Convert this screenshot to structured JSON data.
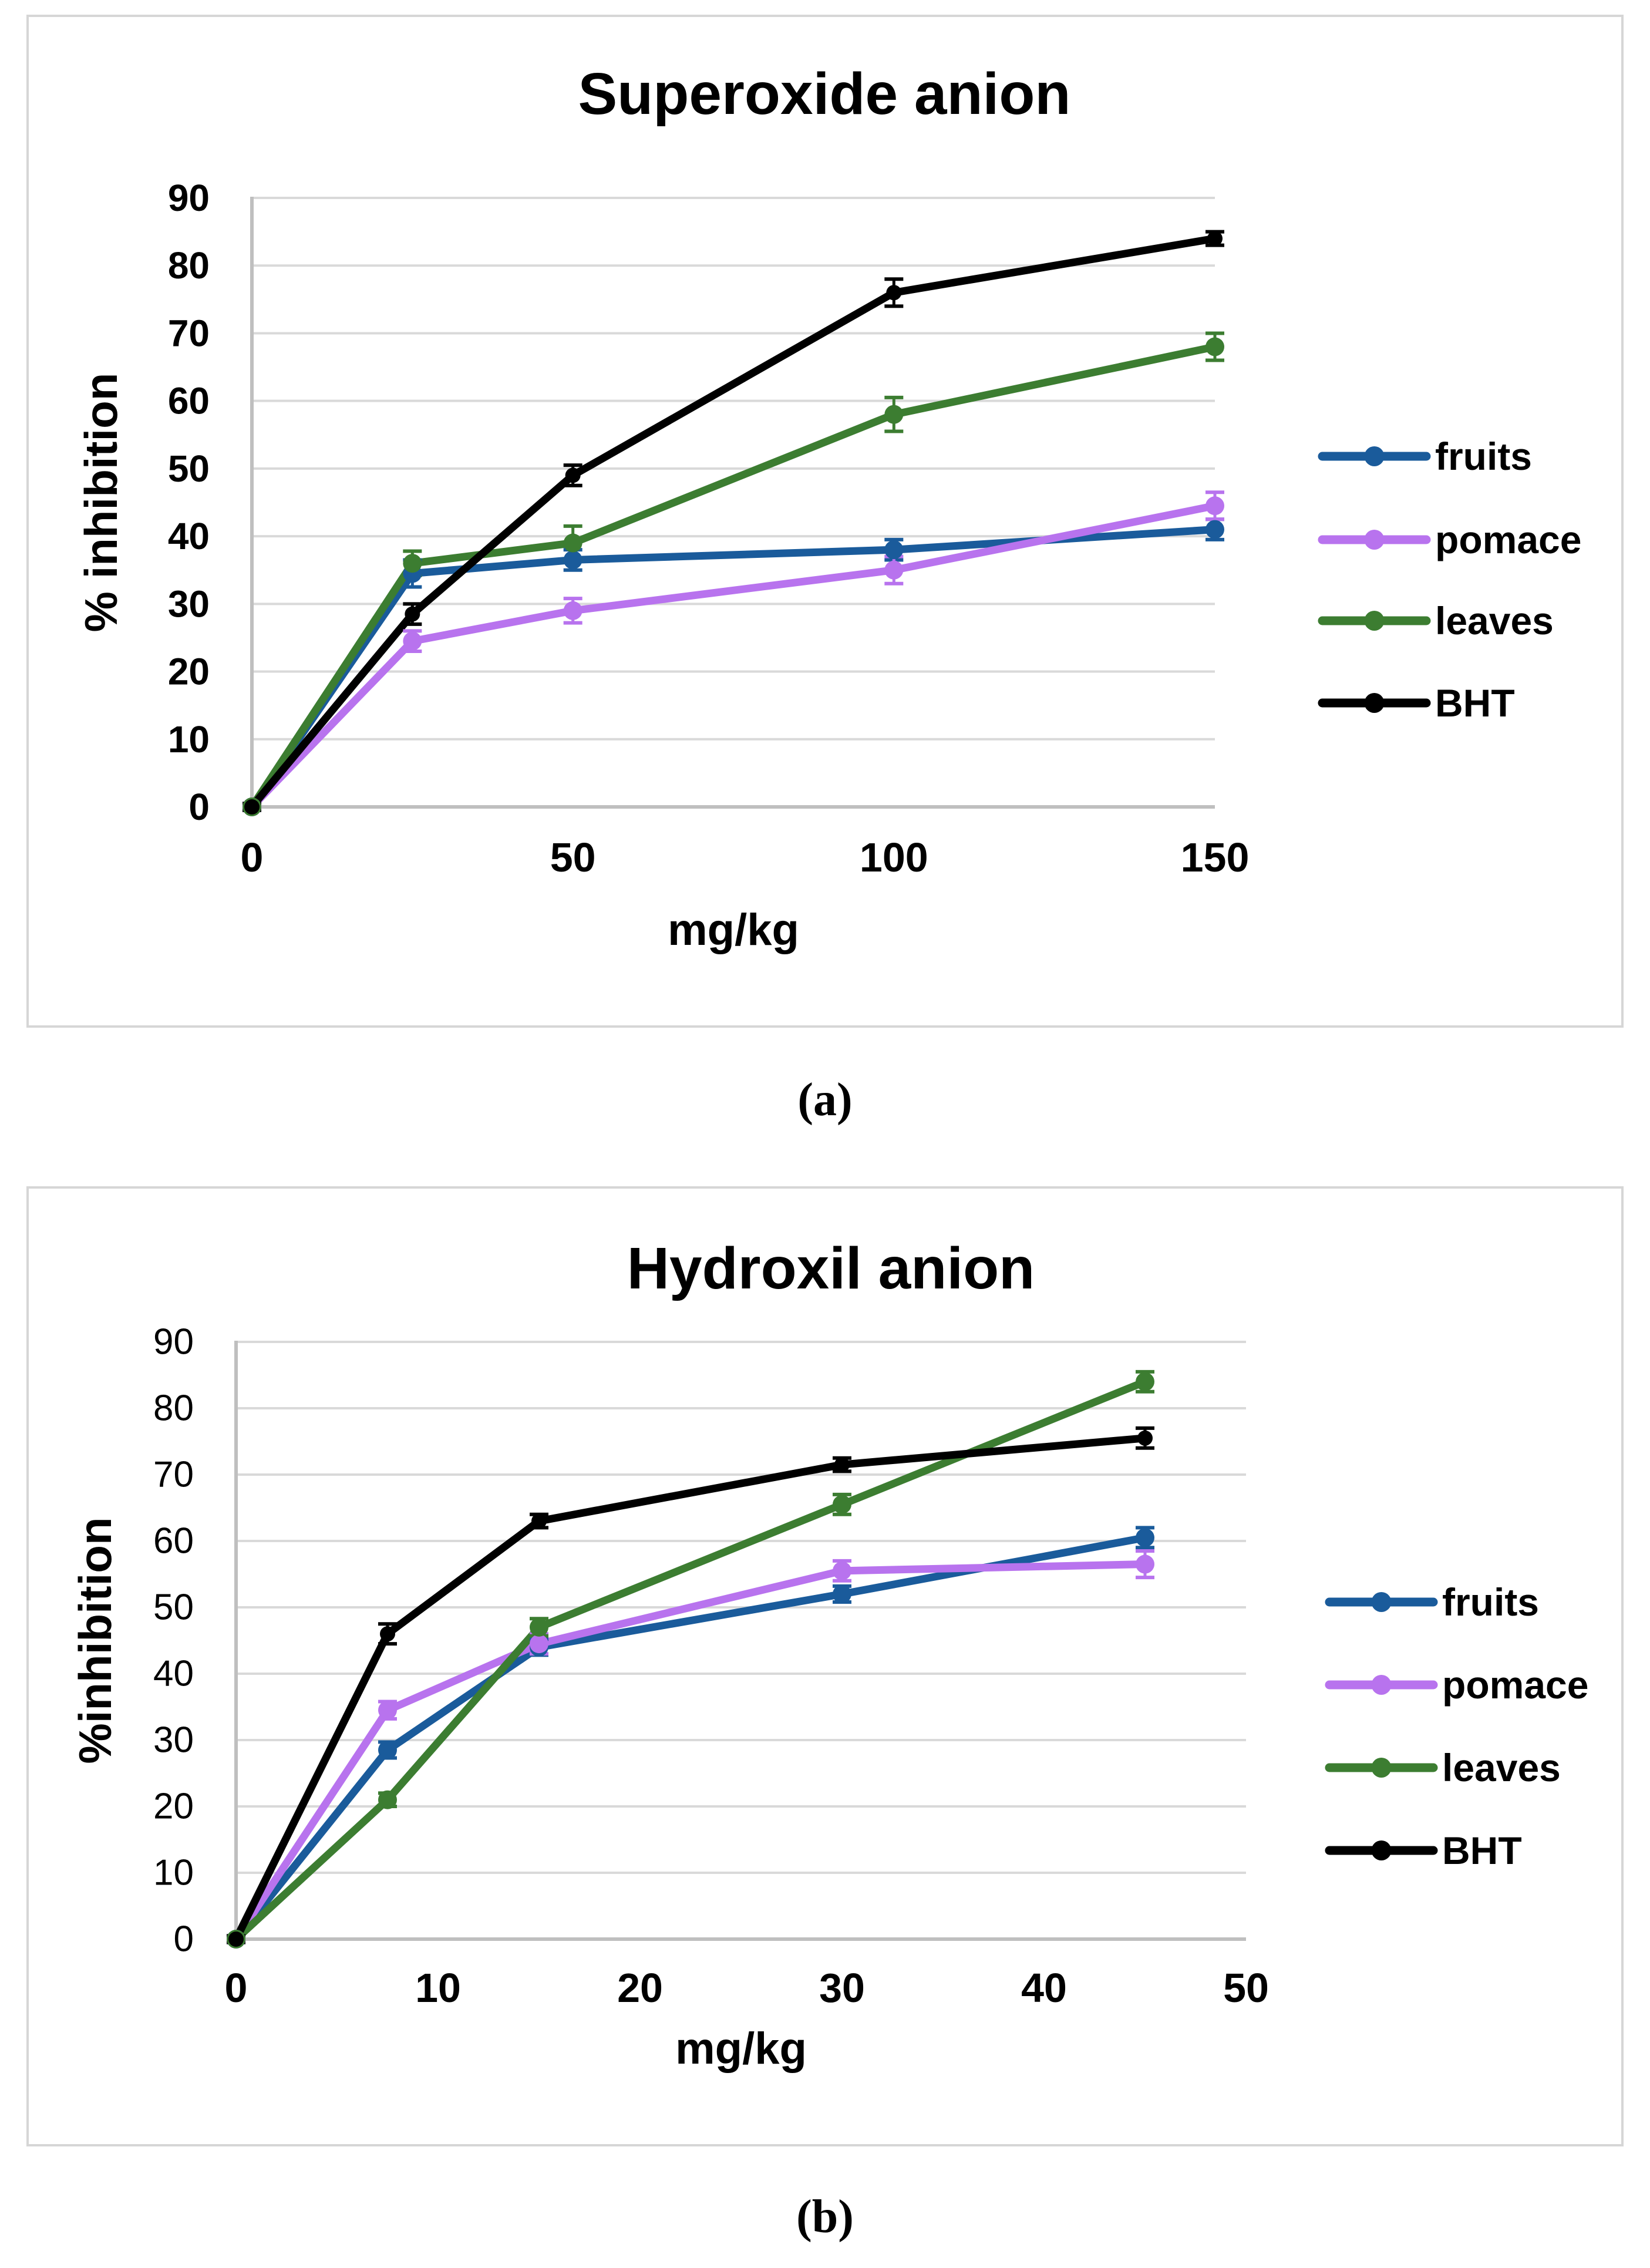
{
  "captions": {
    "a": "(a)",
    "b": "(b)"
  },
  "styles": {
    "background": "#ffffff",
    "gridline_color": "#d9d9d9",
    "axis_color": "#bfbfbf",
    "panel_border_color": "#d6d6d6",
    "text_color": "#000000",
    "fruits_color": "#1a5b9b",
    "pomace_color": "#b873ee",
    "leaves_color": "#3c7d31",
    "bht_color": "#000000"
  },
  "chart_data": [
    {
      "type": "line",
      "id": "a",
      "title": "Superoxide anion",
      "xlabel": "mg/kg",
      "ylabel": "% inhibition",
      "xlim": [
        0,
        150
      ],
      "ylim": [
        0,
        90
      ],
      "x_ticks": [
        0,
        50,
        100,
        150
      ],
      "y_ticks": [
        0,
        10,
        20,
        30,
        40,
        50,
        60,
        70,
        80,
        90
      ],
      "grid": "horizontal",
      "legend_position": "right",
      "tick_weight": {
        "x": "bold",
        "y": "bold"
      },
      "x": [
        0,
        25,
        50,
        100,
        150
      ],
      "series": [
        {
          "name": "fruits",
          "color": "#1a5b9b",
          "values": [
            0,
            34.5,
            36.5,
            38,
            41
          ],
          "errors": [
            0.5,
            2,
            1.5,
            1.5,
            1.5
          ]
        },
        {
          "name": "pomace",
          "color": "#b873ee",
          "values": [
            0,
            24.5,
            29,
            35,
            44.5
          ],
          "errors": [
            0.5,
            1.5,
            1.8,
            2,
            2
          ]
        },
        {
          "name": "leaves",
          "color": "#3c7d31",
          "values": [
            0,
            36,
            39,
            58,
            68
          ],
          "errors": [
            0.5,
            1.8,
            2.5,
            2.5,
            2
          ]
        },
        {
          "name": "BHT",
          "color": "#000000",
          "values": [
            0,
            28.5,
            49,
            76,
            84
          ],
          "errors": [
            0.5,
            1.5,
            1.5,
            2,
            1
          ]
        }
      ]
    },
    {
      "type": "line",
      "id": "b",
      "title": "Hydroxil anion",
      "xlabel": "mg/kg",
      "ylabel": "%inhibition",
      "xlim": [
        0,
        50
      ],
      "ylim": [
        0,
        90
      ],
      "x_ticks": [
        0,
        10,
        20,
        30,
        40,
        50
      ],
      "y_ticks": [
        0,
        10,
        20,
        30,
        40,
        50,
        60,
        70,
        80,
        90
      ],
      "grid": "horizontal",
      "legend_position": "right",
      "tick_weight": {
        "x": "bold",
        "y": "normal"
      },
      "x": [
        0,
        7.5,
        15,
        30,
        45
      ],
      "series": [
        {
          "name": "fruits",
          "color": "#1a5b9b",
          "values": [
            0,
            28.5,
            44,
            52,
            60.5
          ],
          "errors": [
            0.5,
            1.2,
            1.2,
            1.2,
            1.5
          ]
        },
        {
          "name": "pomace",
          "color": "#b873ee",
          "values": [
            0,
            34.5,
            44.5,
            55.5,
            56.5
          ],
          "errors": [
            0.5,
            1.3,
            1.5,
            1.5,
            2
          ]
        },
        {
          "name": "leaves",
          "color": "#3c7d31",
          "values": [
            0,
            21,
            47,
            65.5,
            84
          ],
          "errors": [
            0.5,
            1,
            1.3,
            1.5,
            1.5
          ]
        },
        {
          "name": "BHT",
          "color": "#000000",
          "values": [
            0,
            46,
            63,
            71.5,
            75.5
          ],
          "errors": [
            0.5,
            1.5,
            1,
            1,
            1.5
          ]
        }
      ]
    }
  ]
}
